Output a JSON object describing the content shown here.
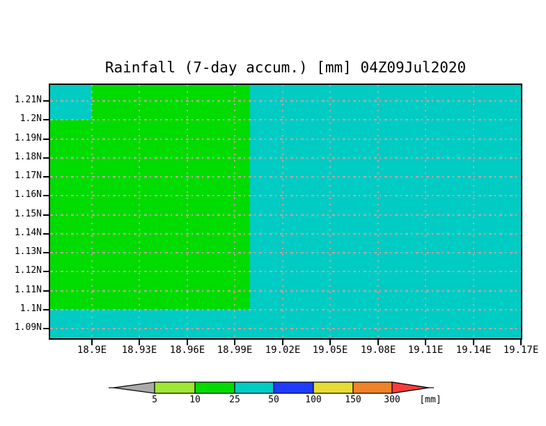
{
  "title": "Rainfall (7-day accum.) [mm] 04Z09Jul2020",
  "chart_data": {
    "type": "heatmap",
    "title": "Rainfall (7-day accum.) [mm] 04Z09Jul2020",
    "x_ticks": [
      "18.9E",
      "18.93E",
      "18.96E",
      "18.99E",
      "19.02E",
      "19.05E",
      "19.08E",
      "19.11E",
      "19.14E",
      "19.17E"
    ],
    "y_ticks": [
      "1.21N",
      "1.2N",
      "1.19N",
      "1.18N",
      "1.17N",
      "1.16N",
      "1.15N",
      "1.14N",
      "1.13N",
      "1.12N",
      "1.11N",
      "1.1N",
      "1.09N"
    ],
    "x_axis_range": [
      "18.874E",
      "19.17E"
    ],
    "y_axis_range": [
      "1.084N",
      "1.219N"
    ],
    "grid": true,
    "field_unit": "mm",
    "regions": [
      {
        "band": "10-25 mm",
        "color": "#00dc00",
        "x_extent": "18.9E to 19.0E",
        "y_extent": "1.1N up to top edge (~1.219N)"
      },
      {
        "band": "10-25 mm",
        "color": "#00dc00",
        "x_extent": "left edge (~18.874E) to 18.9E",
        "y_extent": "1.1N to 1.2N"
      },
      {
        "band": "25-50 mm",
        "color": "#00ccc4",
        "x_extent": "all remaining area",
        "y_extent": "all remaining area"
      }
    ],
    "colorbar": {
      "position": "bottom",
      "tick_labels": [
        "5",
        "10",
        "25",
        "50",
        "100",
        "150",
        "300"
      ],
      "unit_label": "[mm]",
      "bands": [
        {
          "label": "< 5",
          "color": "#aaaaaa"
        },
        {
          "label": "5-10",
          "color": "#a0e632"
        },
        {
          "label": "10-25",
          "color": "#00dc00"
        },
        {
          "label": "25-50",
          "color": "#00ccc4"
        },
        {
          "label": "50-100",
          "color": "#1e3cff"
        },
        {
          "label": "100-150",
          "color": "#e6dc32"
        },
        {
          "label": "150-300",
          "color": "#f08228"
        },
        {
          "label": "> 300",
          "color": "#fa3c3c"
        }
      ]
    }
  },
  "colors": {
    "background": "#ffffff",
    "frame": "#000000",
    "gridline": "#c8a2a2",
    "band_10_25": "#00dc00",
    "band_25_50": "#00ccc4"
  }
}
